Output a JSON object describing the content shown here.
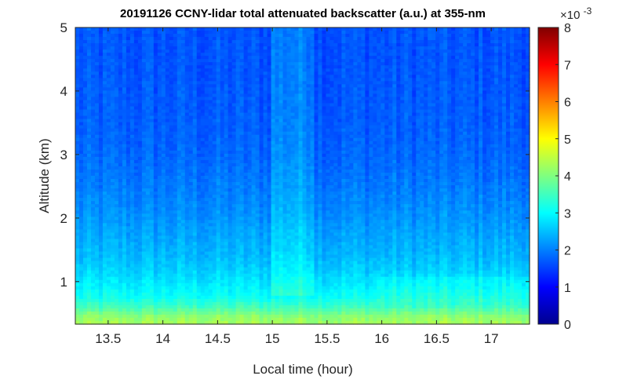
{
  "chart_data": {
    "type": "heatmap",
    "title": "20191126 CCNY-lidar total attenuated backscatter (a.u.) at 355-nm",
    "xlabel": "Local time (hour)",
    "ylabel": "Altitude (km)",
    "xlim": [
      13.2,
      17.35
    ],
    "ylim": [
      0.33,
      5.0
    ],
    "xticks": [
      "13.5",
      "14",
      "14.5",
      "15",
      "15.5",
      "16",
      "16.5",
      "17"
    ],
    "yticks": [
      "1",
      "2",
      "3",
      "4",
      "5"
    ],
    "x_tick_values": [
      13.5,
      14,
      14.5,
      15,
      15.5,
      16,
      16.5,
      17
    ],
    "y_tick_values": [
      1,
      2,
      3,
      4,
      5
    ],
    "colorbar": {
      "colormap": "jet",
      "range": [
        0,
        8
      ],
      "ticks": [
        "0",
        "1",
        "2",
        "3",
        "4",
        "5",
        "6",
        "7",
        "8"
      ],
      "tick_values": [
        0,
        1,
        2,
        3,
        4,
        5,
        6,
        7,
        8
      ],
      "multiplier_base": "×10",
      "multiplier_exponent": "-3"
    },
    "profile": {
      "altitude_km": [
        0.33,
        0.45,
        0.6,
        0.75,
        0.9,
        1.0,
        1.2,
        1.4,
        1.7,
        2.0,
        2.5,
        3.0,
        3.5,
        4.0,
        4.5,
        5.0
      ],
      "backscatter_e-3": [
        4.3,
        4.1,
        3.5,
        3.1,
        2.9,
        2.8,
        2.6,
        2.45,
        2.3,
        2.15,
        1.95,
        1.8,
        1.72,
        1.68,
        1.65,
        1.65
      ]
    }
  }
}
